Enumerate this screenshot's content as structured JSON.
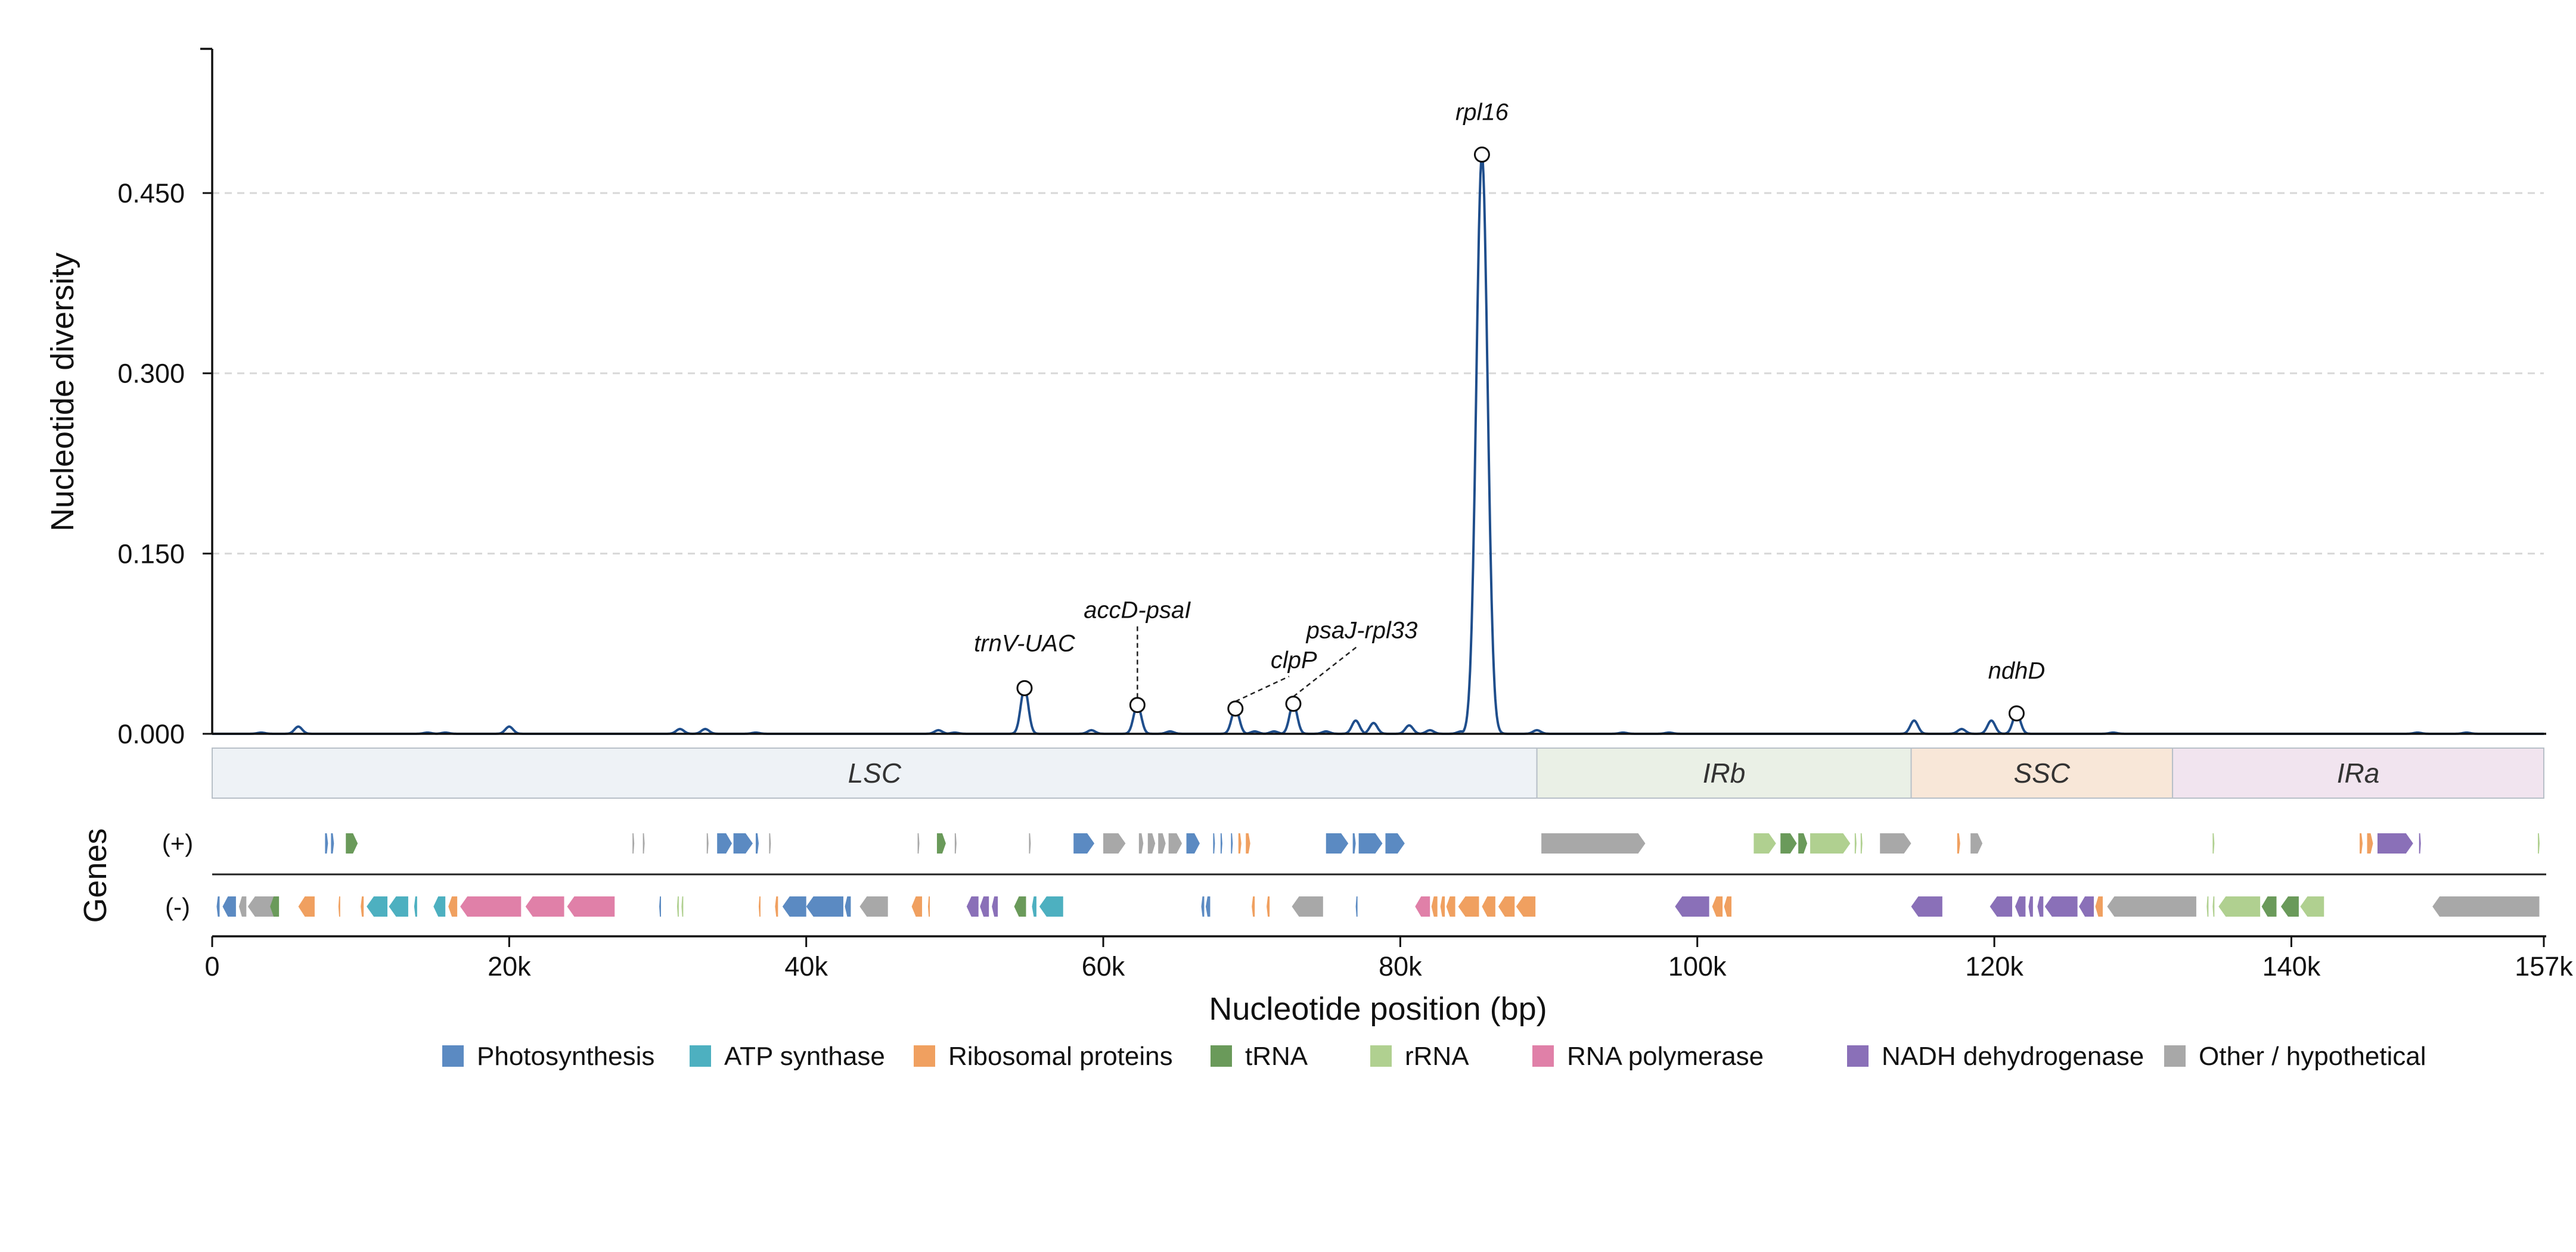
{
  "chart_data": {
    "type": "line",
    "ylabel": "Nucleotide diversity",
    "xlabel": "Nucleotide position (bp)",
    "genes_label": "Genes",
    "strand_plus_label": "(+)",
    "strand_minus_label": "(-)",
    "xlim": [
      0,
      157000
    ],
    "ylim": [
      0,
      0.57
    ],
    "yticks": [
      0.0,
      0.15,
      0.3,
      0.45
    ],
    "ytick_labels": [
      "0.000",
      "0.150",
      "0.300",
      "0.450"
    ],
    "xticks": [
      0,
      20000,
      40000,
      60000,
      80000,
      100000,
      120000,
      140000,
      157000
    ],
    "xtick_labels": [
      "0",
      "20k",
      "40k",
      "60k",
      "80k",
      "100k",
      "120k",
      "140k",
      "157k"
    ],
    "grid": "y-dashed",
    "line_color": "#1f4e8c",
    "peaks": [
      {
        "x": 5800,
        "y": 0.006
      },
      {
        "x": 20000,
        "y": 0.006
      },
      {
        "x": 31500,
        "y": 0.004
      },
      {
        "x": 33200,
        "y": 0.004
      },
      {
        "x": 48900,
        "y": 0.003
      },
      {
        "x": 54700,
        "y": 0.038
      },
      {
        "x": 59200,
        "y": 0.003
      },
      {
        "x": 62300,
        "y": 0.024
      },
      {
        "x": 64500,
        "y": 0.002
      },
      {
        "x": 68900,
        "y": 0.021
      },
      {
        "x": 70200,
        "y": 0.002
      },
      {
        "x": 71500,
        "y": 0.002
      },
      {
        "x": 72800,
        "y": 0.025
      },
      {
        "x": 75000,
        "y": 0.002
      },
      {
        "x": 77000,
        "y": 0.011
      },
      {
        "x": 78200,
        "y": 0.009
      },
      {
        "x": 80600,
        "y": 0.007
      },
      {
        "x": 82000,
        "y": 0.003
      },
      {
        "x": 84100,
        "y": 0.002
      },
      {
        "x": 85500,
        "y": 0.482
      },
      {
        "x": 89200,
        "y": 0.003
      },
      {
        "x": 95000,
        "y": 0.001
      },
      {
        "x": 98100,
        "y": 0.001
      },
      {
        "x": 114600,
        "y": 0.011
      },
      {
        "x": 117800,
        "y": 0.004
      },
      {
        "x": 119800,
        "y": 0.011
      },
      {
        "x": 121500,
        "y": 0.017
      },
      {
        "x": 128000,
        "y": 0.001
      },
      {
        "x": 148500,
        "y": 0.001
      },
      {
        "x": 151800,
        "y": 0.001
      },
      {
        "x": 3300,
        "y": 0.001
      },
      {
        "x": 14500,
        "y": 0.001
      },
      {
        "x": 15700,
        "y": 0.001
      },
      {
        "x": 36600,
        "y": 0.001
      },
      {
        "x": 50000,
        "y": 0.001
      }
    ],
    "annotations": [
      {
        "label": "trnV-UAC",
        "x": 54700,
        "y": 0.038
      },
      {
        "label": "accD-psaI",
        "x": 62300,
        "y": 0.024
      },
      {
        "label": "clpP",
        "x": 68900,
        "y": 0.021
      },
      {
        "label": "psaJ-rpl33",
        "x": 72800,
        "y": 0.025
      },
      {
        "label": "rpl16",
        "x": 85500,
        "y": 0.482
      },
      {
        "label": "ndhD",
        "x": 121500,
        "y": 0.017
      }
    ],
    "regions": [
      {
        "name": "LSC",
        "start": 0,
        "end": 89200,
        "color": "#eef2f6"
      },
      {
        "name": "IRb",
        "start": 89200,
        "end": 114400,
        "color": "#eaf0e6"
      },
      {
        "name": "SSC",
        "start": 114400,
        "end": 132000,
        "color": "#f8e7d8"
      },
      {
        "name": "IRa",
        "start": 132000,
        "end": 157000,
        "color": "#f1e4ef"
      }
    ],
    "categories": [
      {
        "name": "Photosynthesis",
        "color": "#5b8ac2"
      },
      {
        "name": "ATP synthase",
        "color": "#4db0c0"
      },
      {
        "name": "Ribosomal proteins",
        "color": "#f0a060"
      },
      {
        "name": "tRNA",
        "color": "#6a9a5a"
      },
      {
        "name": "rRNA",
        "color": "#b0d090"
      },
      {
        "name": "RNA polymerase",
        "color": "#e080a8"
      },
      {
        "name": "NADH dehydrogenase",
        "color": "#8a70b8"
      },
      {
        "name": "Other / hypothetical",
        "color": "#a8a8a8"
      }
    ],
    "genes_plus": [
      {
        "s": 7600,
        "e": 7800,
        "c": 0
      },
      {
        "s": 8000,
        "e": 8200,
        "c": 0
      },
      {
        "s": 9000,
        "e": 9800,
        "c": 3
      },
      {
        "s": 28300,
        "e": 28400,
        "c": 7
      },
      {
        "s": 29000,
        "e": 29100,
        "c": 7
      },
      {
        "s": 33300,
        "e": 33400,
        "c": 7
      },
      {
        "s": 34000,
        "e": 35000,
        "c": 0
      },
      {
        "s": 35100,
        "e": 36400,
        "c": 0
      },
      {
        "s": 36600,
        "e": 36800,
        "c": 0
      },
      {
        "s": 37500,
        "e": 37600,
        "c": 7
      },
      {
        "s": 47500,
        "e": 47600,
        "c": 7
      },
      {
        "s": 48800,
        "e": 49400,
        "c": 3
      },
      {
        "s": 50000,
        "e": 50100,
        "c": 7
      },
      {
        "s": 55000,
        "e": 55100,
        "c": 7
      },
      {
        "s": 58000,
        "e": 59400,
        "c": 0
      },
      {
        "s": 60000,
        "e": 61500,
        "c": 7
      },
      {
        "s": 62400,
        "e": 62700,
        "c": 7
      },
      {
        "s": 63000,
        "e": 63500,
        "c": 7
      },
      {
        "s": 63700,
        "e": 64200,
        "c": 7
      },
      {
        "s": 64400,
        "e": 65300,
        "c": 7
      },
      {
        "s": 65600,
        "e": 66500,
        "c": 0
      },
      {
        "s": 67400,
        "e": 67500,
        "c": 0
      },
      {
        "s": 67900,
        "e": 68000,
        "c": 0
      },
      {
        "s": 68600,
        "e": 68700,
        "c": 0
      },
      {
        "s": 69100,
        "e": 69300,
        "c": 2
      },
      {
        "s": 69600,
        "e": 69900,
        "c": 2
      },
      {
        "s": 75000,
        "e": 76500,
        "c": 0
      },
      {
        "s": 76800,
        "e": 77000,
        "c": 0
      },
      {
        "s": 77200,
        "e": 78800,
        "c": 0
      },
      {
        "s": 79000,
        "e": 80300,
        "c": 0
      },
      {
        "s": 89500,
        "e": 96500,
        "c": 7
      },
      {
        "s": 103800,
        "e": 105300,
        "c": 4
      },
      {
        "s": 105600,
        "e": 106700,
        "c": 3
      },
      {
        "s": 106800,
        "e": 107400,
        "c": 3
      },
      {
        "s": 107600,
        "e": 110300,
        "c": 4
      },
      {
        "s": 110600,
        "e": 110700,
        "c": 4
      },
      {
        "s": 111000,
        "e": 111100,
        "c": 4
      },
      {
        "s": 112300,
        "e": 114400,
        "c": 7
      },
      {
        "s": 117500,
        "e": 117700,
        "c": 2
      },
      {
        "s": 118400,
        "e": 119200,
        "c": 7
      },
      {
        "s": 134700,
        "e": 134800,
        "c": 4
      },
      {
        "s": 144600,
        "e": 144800,
        "c": 2
      },
      {
        "s": 145100,
        "e": 145500,
        "c": 2
      },
      {
        "s": 145800,
        "e": 148200,
        "c": 6
      },
      {
        "s": 148600,
        "e": 148700,
        "c": 6
      },
      {
        "s": 156600,
        "e": 156700,
        "c": 4
      }
    ],
    "genes_minus": [
      {
        "s": 300,
        "e": 500,
        "c": 0
      },
      {
        "s": 700,
        "e": 1600,
        "c": 0
      },
      {
        "s": 1800,
        "e": 2300,
        "c": 7
      },
      {
        "s": 2400,
        "e": 4400,
        "c": 7
      },
      {
        "s": 3900,
        "e": 4500,
        "c": 3
      },
      {
        "s": 5800,
        "e": 6900,
        "c": 2
      },
      {
        "s": 8500,
        "e": 8600,
        "c": 2
      },
      {
        "s": 10000,
        "e": 10200,
        "c": 2
      },
      {
        "s": 10400,
        "e": 11800,
        "c": 1
      },
      {
        "s": 11900,
        "e": 13200,
        "c": 1
      },
      {
        "s": 13600,
        "e": 13800,
        "c": 1
      },
      {
        "s": 14900,
        "e": 15700,
        "c": 1
      },
      {
        "s": 15900,
        "e": 16500,
        "c": 2
      },
      {
        "s": 16700,
        "e": 20800,
        "c": 5
      },
      {
        "s": 21100,
        "e": 23700,
        "c": 5
      },
      {
        "s": 23900,
        "e": 27100,
        "c": 5
      },
      {
        "s": 30100,
        "e": 30200,
        "c": 0
      },
      {
        "s": 31300,
        "e": 31400,
        "c": 4
      },
      {
        "s": 31600,
        "e": 31700,
        "c": 4
      },
      {
        "s": 36800,
        "e": 36900,
        "c": 2
      },
      {
        "s": 37900,
        "e": 38100,
        "c": 2
      },
      {
        "s": 38400,
        "e": 40000,
        "c": 0
      },
      {
        "s": 40000,
        "e": 42500,
        "c": 0
      },
      {
        "s": 42600,
        "e": 43000,
        "c": 0
      },
      {
        "s": 43600,
        "e": 45500,
        "c": 7
      },
      {
        "s": 47100,
        "e": 47800,
        "c": 2
      },
      {
        "s": 48200,
        "e": 48300,
        "c": 2
      },
      {
        "s": 50800,
        "e": 51600,
        "c": 6
      },
      {
        "s": 51700,
        "e": 52300,
        "c": 6
      },
      {
        "s": 52500,
        "e": 52900,
        "c": 6
      },
      {
        "s": 54000,
        "e": 54800,
        "c": 3
      },
      {
        "s": 55200,
        "e": 55500,
        "c": 1
      },
      {
        "s": 55700,
        "e": 57300,
        "c": 1
      },
      {
        "s": 66600,
        "e": 66800,
        "c": 0
      },
      {
        "s": 66900,
        "e": 67200,
        "c": 0
      },
      {
        "s": 70000,
        "e": 70200,
        "c": 2
      },
      {
        "s": 71000,
        "e": 71200,
        "c": 2
      },
      {
        "s": 72700,
        "e": 74800,
        "c": 7
      },
      {
        "s": 77000,
        "e": 77100,
        "c": 0
      },
      {
        "s": 81000,
        "e": 82000,
        "c": 5
      },
      {
        "s": 82100,
        "e": 82500,
        "c": 2
      },
      {
        "s": 82700,
        "e": 83000,
        "c": 2
      },
      {
        "s": 83100,
        "e": 83700,
        "c": 2
      },
      {
        "s": 83900,
        "e": 85300,
        "c": 2
      },
      {
        "s": 85500,
        "e": 86400,
        "c": 2
      },
      {
        "s": 86600,
        "e": 87700,
        "c": 2
      },
      {
        "s": 87800,
        "e": 89100,
        "c": 2
      },
      {
        "s": 98500,
        "e": 100800,
        "c": 6
      },
      {
        "s": 101000,
        "e": 101700,
        "c": 2
      },
      {
        "s": 101800,
        "e": 102300,
        "c": 2
      },
      {
        "s": 114400,
        "e": 116500,
        "c": 6
      },
      {
        "s": 119700,
        "e": 121200,
        "c": 6
      },
      {
        "s": 121400,
        "e": 122100,
        "c": 6
      },
      {
        "s": 122300,
        "e": 122600,
        "c": 6
      },
      {
        "s": 122900,
        "e": 123300,
        "c": 6
      },
      {
        "s": 123400,
        "e": 125600,
        "c": 6
      },
      {
        "s": 125700,
        "e": 126700,
        "c": 6
      },
      {
        "s": 126800,
        "e": 127300,
        "c": 2
      },
      {
        "s": 127600,
        "e": 133600,
        "c": 7
      },
      {
        "s": 134300,
        "e": 134400,
        "c": 4
      },
      {
        "s": 134700,
        "e": 134800,
        "c": 4
      },
      {
        "s": 135100,
        "e": 137900,
        "c": 4
      },
      {
        "s": 138000,
        "e": 139000,
        "c": 3
      },
      {
        "s": 139300,
        "e": 140500,
        "c": 3
      },
      {
        "s": 140600,
        "e": 142200,
        "c": 4
      },
      {
        "s": 149500,
        "e": 156700,
        "c": 7
      }
    ]
  }
}
